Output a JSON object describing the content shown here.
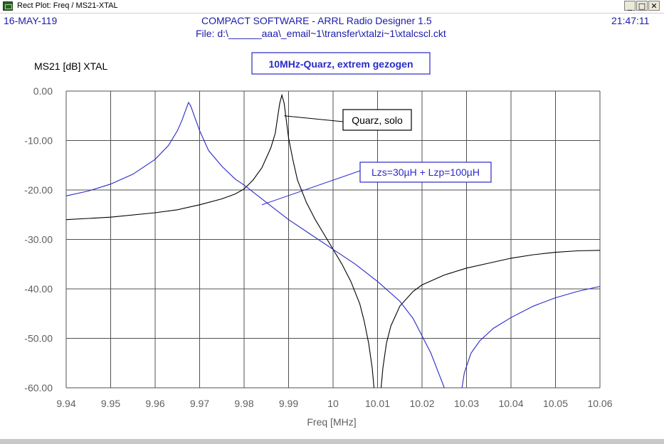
{
  "window": {
    "title": "Rect Plot: Freq / MS21-XTAL",
    "buttons": {
      "minimize": "_",
      "maximize": "□",
      "close": "✕"
    }
  },
  "header": {
    "date": "16-MAY-119",
    "app_title": "COMPACT SOFTWARE - ARRL Radio Designer 1.5",
    "file": "File: d:\\______aaa\\_email~1\\transfer\\xtalzi~1\\xtalcscl.ckt",
    "time": "21:47:11"
  },
  "colors": {
    "series_black": "#000000",
    "series_blue": "#2a2ac8",
    "grid": "#505050",
    "title_box": "#2a2ac8",
    "axis_text": "#606060"
  },
  "chart_data": {
    "type": "line",
    "title": "10MHz-Quarz, extrem gezogen",
    "ylabel": "MS21 [dB] XTAL",
    "xlabel": "Freq [MHz]",
    "xlim": [
      9.94,
      10.06
    ],
    "ylim": [
      -60,
      0
    ],
    "grid": true,
    "x_ticks": [
      "9.94",
      "9.95",
      "9.96",
      "9.97",
      "9.98",
      "9.99",
      "10",
      "10.01",
      "10.02",
      "10.03",
      "10.04",
      "10.05",
      "10.06"
    ],
    "y_ticks": [
      "0.00",
      "-10.00",
      "-20.00",
      "-30.00",
      "-40.00",
      "-50.00",
      "-60.00"
    ],
    "series": [
      {
        "name": "Quarz, solo",
        "color": "#000000",
        "points": [
          [
            9.94,
            -26.0
          ],
          [
            9.95,
            -25.5
          ],
          [
            9.96,
            -24.6
          ],
          [
            9.965,
            -24.0
          ],
          [
            9.97,
            -23.0
          ],
          [
            9.975,
            -21.8
          ],
          [
            9.978,
            -20.8
          ],
          [
            9.98,
            -19.8
          ],
          [
            9.982,
            -18.0
          ],
          [
            9.984,
            -15.5
          ],
          [
            9.986,
            -11.5
          ],
          [
            9.987,
            -8.5
          ],
          [
            9.9875,
            -5.5
          ],
          [
            9.988,
            -2.5
          ],
          [
            9.9885,
            -0.8
          ],
          [
            9.989,
            -2.5
          ],
          [
            9.9895,
            -6.0
          ],
          [
            9.99,
            -9.5
          ],
          [
            9.991,
            -14.0
          ],
          [
            9.992,
            -18.0
          ],
          [
            9.994,
            -22.5
          ],
          [
            9.996,
            -26.0
          ],
          [
            9.998,
            -29.0
          ],
          [
            10.0,
            -32.0
          ],
          [
            10.002,
            -35.0
          ],
          [
            10.004,
            -38.5
          ],
          [
            10.006,
            -43.0
          ],
          [
            10.007,
            -46.5
          ],
          [
            10.008,
            -51.0
          ],
          [
            10.0088,
            -56.0
          ],
          [
            10.0092,
            -60.0
          ]
        ],
        "points_b": [
          [
            10.0108,
            -60.0
          ],
          [
            10.0112,
            -56.0
          ],
          [
            10.012,
            -51.0
          ],
          [
            10.013,
            -47.5
          ],
          [
            10.015,
            -43.5
          ],
          [
            10.018,
            -40.5
          ],
          [
            10.02,
            -39.2
          ],
          [
            10.025,
            -37.2
          ],
          [
            10.03,
            -35.8
          ],
          [
            10.035,
            -34.8
          ],
          [
            10.04,
            -33.8
          ],
          [
            10.045,
            -33.1
          ],
          [
            10.05,
            -32.6
          ],
          [
            10.055,
            -32.3
          ],
          [
            10.06,
            -32.2
          ]
        ]
      },
      {
        "name": "Lzs=30µH + Lzp=100µH",
        "color": "#2a2ac8",
        "points": [
          [
            9.94,
            -21.2
          ],
          [
            9.945,
            -20.2
          ],
          [
            9.95,
            -18.8
          ],
          [
            9.955,
            -16.8
          ],
          [
            9.96,
            -13.8
          ],
          [
            9.963,
            -11.0
          ],
          [
            9.965,
            -8.0
          ],
          [
            9.966,
            -6.0
          ],
          [
            9.967,
            -3.5
          ],
          [
            9.9675,
            -2.3
          ],
          [
            9.968,
            -3.0
          ],
          [
            9.969,
            -5.5
          ],
          [
            9.97,
            -8.0
          ],
          [
            9.972,
            -12.0
          ],
          [
            9.975,
            -15.2
          ],
          [
            9.978,
            -17.8
          ],
          [
            9.98,
            -19.0
          ],
          [
            9.985,
            -22.5
          ],
          [
            9.99,
            -26.0
          ],
          [
            9.995,
            -29.0
          ],
          [
            10.0,
            -32.0
          ],
          [
            10.005,
            -35.0
          ],
          [
            10.01,
            -38.5
          ],
          [
            10.015,
            -42.5
          ],
          [
            10.018,
            -46.0
          ],
          [
            10.02,
            -49.5
          ],
          [
            10.022,
            -53.0
          ],
          [
            10.0235,
            -56.5
          ],
          [
            10.025,
            -60.0
          ]
        ],
        "points_b": [
          [
            10.029,
            -60.0
          ],
          [
            10.0295,
            -57.0
          ],
          [
            10.031,
            -53.0
          ],
          [
            10.033,
            -50.5
          ],
          [
            10.036,
            -48.0
          ],
          [
            10.04,
            -45.8
          ],
          [
            10.045,
            -43.5
          ],
          [
            10.05,
            -41.8
          ],
          [
            10.055,
            -40.5
          ],
          [
            10.06,
            -39.5
          ]
        ]
      }
    ],
    "annotations": [
      {
        "text": "Quarz, solo",
        "target": [
          9.989,
          -5.0
        ]
      },
      {
        "text": "Lzs=30µH + Lzp=100µH",
        "target": [
          9.984,
          -23.0
        ]
      }
    ]
  }
}
